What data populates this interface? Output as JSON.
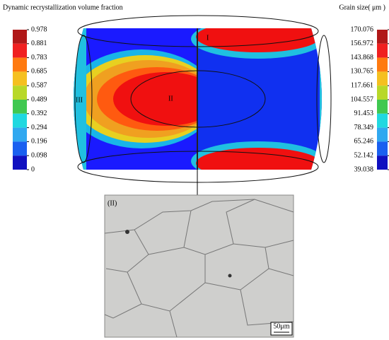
{
  "left_legend": {
    "title": "Dynamic recrystallization volume fraction",
    "labels": [
      "0.978",
      "0.881",
      "0.783",
      "0.685",
      "0.587",
      "0.489",
      "0.392",
      "0.294",
      "0.196",
      "0.098",
      "0"
    ]
  },
  "right_legend": {
    "title": "Grain size( μm )",
    "labels": [
      "170.076",
      "156.972",
      "143.868",
      "130.765",
      "117.661",
      "104.557",
      "91.453",
      "78.349",
      "65.246",
      "52.142",
      "39.038"
    ]
  },
  "regions": [
    "I",
    "II",
    "III"
  ],
  "micrograph": {
    "label": "(II)",
    "scale_bar": "50μm"
  }
}
